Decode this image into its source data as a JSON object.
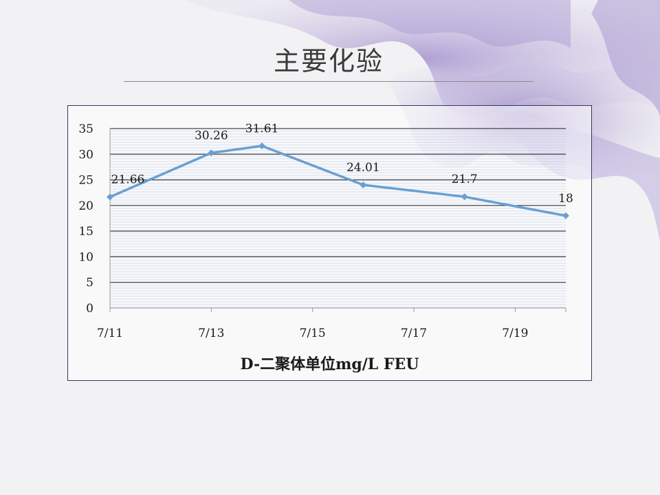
{
  "slide": {
    "title": "主要化验"
  },
  "colors": {
    "series": "#6a9fd2",
    "grid": "#1a1a1a",
    "hatch": "#b9c8e6"
  },
  "chart_data": {
    "type": "line",
    "title": "",
    "xlabel": "D-二聚体单位mg/L FEU",
    "ylabel": "",
    "ylim": [
      0,
      35
    ],
    "y_ticks": [
      0,
      5,
      10,
      15,
      20,
      25,
      30,
      35
    ],
    "x_ticks": [
      "7/11",
      "7/13",
      "7/15",
      "7/17",
      "7/19"
    ],
    "x_domain": [
      "7/11",
      "7/20"
    ],
    "grid": true,
    "legend": "none",
    "series": [
      {
        "points": [
          {
            "x": "7/11",
            "y": 21.66,
            "label": "21.66"
          },
          {
            "x": "7/13",
            "y": 30.26,
            "label": "30.26"
          },
          {
            "x": "7/14",
            "y": 31.61,
            "label": "31.61"
          },
          {
            "x": "7/16",
            "y": 24.01,
            "label": "24.01"
          },
          {
            "x": "7/18",
            "y": 21.7,
            "label": "21.7"
          },
          {
            "x": "7/20",
            "y": 18,
            "label": "18"
          }
        ]
      }
    ]
  }
}
